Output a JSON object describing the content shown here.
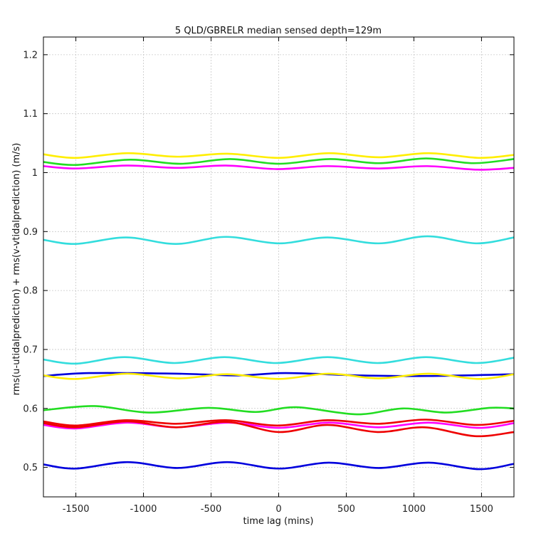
{
  "chart_data": {
    "type": "line",
    "title": "5 QLD/GBRELR median sensed depth=129m",
    "xlabel": "time lag (mins)",
    "ylabel": "rms(u-utidalprediction) + rms(v-vtidalprediction) (m/s)",
    "xlim": [
      -1740,
      1740
    ],
    "ylim": [
      0.45,
      1.23
    ],
    "xticks": [
      -1500,
      -1000,
      -500,
      0,
      500,
      1000,
      1500
    ],
    "yticks": [
      0.5,
      0.6,
      0.7,
      0.8,
      0.9,
      1.0,
      1.1,
      1.2
    ],
    "xtick_labels": [
      "-1500",
      "-1000",
      "-500",
      "0",
      "500",
      "1000",
      "1500"
    ],
    "ytick_labels": [
      "0.5",
      "0.6",
      "0.7",
      "0.8",
      "0.9",
      "1",
      "1.1",
      "1.2"
    ],
    "grid": true,
    "series": [
      {
        "name": "yellow-high",
        "color": "#ffee00",
        "x": [
          -1740,
          -1500,
          -1120,
          -750,
          -380,
          0,
          370,
          740,
          1110,
          1480,
          1740
        ],
        "y": [
          1.031,
          1.025,
          1.033,
          1.027,
          1.032,
          1.025,
          1.033,
          1.026,
          1.033,
          1.025,
          1.03
        ]
      },
      {
        "name": "green-high",
        "color": "#22dd22",
        "x": [
          -1740,
          -1500,
          -1100,
          -730,
          -360,
          0,
          380,
          740,
          1090,
          1440,
          1740
        ],
        "y": [
          1.018,
          1.013,
          1.022,
          1.015,
          1.023,
          1.015,
          1.023,
          1.016,
          1.024,
          1.016,
          1.023
        ]
      },
      {
        "name": "magenta-high",
        "color": "#ff00ff",
        "x": [
          -1740,
          -1500,
          -1120,
          -750,
          -390,
          -10,
          360,
          730,
          1100,
          1470,
          1740
        ],
        "y": [
          1.011,
          1.007,
          1.012,
          1.008,
          1.012,
          1.006,
          1.011,
          1.007,
          1.011,
          1.005,
          1.008
        ]
      },
      {
        "name": "cyan-high",
        "color": "#33dddd",
        "x": [
          -1740,
          -1500,
          -1130,
          -760,
          -390,
          0,
          360,
          740,
          1100,
          1460,
          1740
        ],
        "y": [
          0.886,
          0.879,
          0.89,
          0.879,
          0.891,
          0.88,
          0.89,
          0.88,
          0.892,
          0.88,
          0.89
        ]
      },
      {
        "name": "cyan-mid",
        "color": "#33dddd",
        "x": [
          -1740,
          -1500,
          -1140,
          -770,
          -400,
          -20,
          360,
          730,
          1090,
          1460,
          1740
        ],
        "y": [
          0.683,
          0.676,
          0.687,
          0.677,
          0.687,
          0.677,
          0.687,
          0.677,
          0.687,
          0.677,
          0.686
        ]
      },
      {
        "name": "blue-mid",
        "color": "#0000dd",
        "x": [
          -1740,
          -1400,
          -750,
          -300,
          50,
          600,
          1100,
          1740
        ],
        "y": [
          0.655,
          0.66,
          0.659,
          0.656,
          0.66,
          0.656,
          0.655,
          0.658
        ]
      },
      {
        "name": "yellow-mid",
        "color": "#ffee00",
        "x": [
          -1740,
          -1500,
          -1120,
          -740,
          -380,
          0,
          370,
          740,
          1110,
          1480,
          1740
        ],
        "y": [
          0.656,
          0.65,
          0.659,
          0.651,
          0.658,
          0.65,
          0.659,
          0.651,
          0.659,
          0.65,
          0.658
        ]
      },
      {
        "name": "green-mid",
        "color": "#22dd22",
        "x": [
          -1740,
          -1360,
          -960,
          -520,
          -170,
          130,
          580,
          920,
          1240,
          1560,
          1740
        ],
        "y": [
          0.597,
          0.604,
          0.593,
          0.601,
          0.594,
          0.602,
          0.59,
          0.6,
          0.593,
          0.601,
          0.6
        ]
      },
      {
        "name": "red-a",
        "color": "#ee0000",
        "x": [
          -1740,
          -1500,
          -1130,
          -760,
          -390,
          -10,
          360,
          730,
          1090,
          1460,
          1740
        ],
        "y": [
          0.578,
          0.571,
          0.58,
          0.574,
          0.58,
          0.571,
          0.58,
          0.574,
          0.581,
          0.572,
          0.579
        ]
      },
      {
        "name": "magenta-low",
        "color": "#ff00ff",
        "x": [
          -1740,
          -1500,
          -1120,
          -760,
          -370,
          0,
          370,
          740,
          1110,
          1480,
          1740
        ],
        "y": [
          0.572,
          0.566,
          0.576,
          0.568,
          0.576,
          0.567,
          0.576,
          0.568,
          0.576,
          0.567,
          0.575
        ]
      },
      {
        "name": "red-b",
        "color": "#ee0000",
        "x": [
          -1740,
          -1500,
          -1120,
          -760,
          -380,
          0,
          360,
          730,
          1080,
          1450,
          1740
        ],
        "y": [
          0.575,
          0.568,
          0.578,
          0.568,
          0.577,
          0.56,
          0.572,
          0.56,
          0.568,
          0.553,
          0.56
        ]
      },
      {
        "name": "blue-low",
        "color": "#0000dd",
        "x": [
          -1740,
          -1500,
          -1120,
          -750,
          -380,
          0,
          370,
          740,
          1110,
          1480,
          1740
        ],
        "y": [
          0.505,
          0.498,
          0.509,
          0.499,
          0.509,
          0.498,
          0.508,
          0.499,
          0.508,
          0.497,
          0.506
        ]
      }
    ]
  }
}
